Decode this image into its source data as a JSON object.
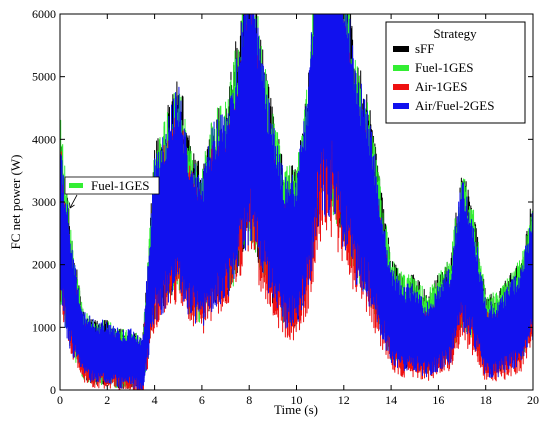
{
  "chart_data": {
    "type": "line",
    "xlabel": "Time (s)",
    "ylabel": "FC net power (W)",
    "xlim": [
      0,
      20
    ],
    "ylim": [
      0,
      6000
    ],
    "xticks": [
      0,
      2,
      4,
      6,
      8,
      10,
      12,
      14,
      16,
      18,
      20
    ],
    "yticks": [
      0,
      1000,
      2000,
      3000,
      4000,
      5000,
      6000
    ],
    "grid": false,
    "legend": {
      "title": "Strategy",
      "placement": "top-right"
    },
    "annotation": {
      "text": "Fuel-1GES",
      "x": 0.4,
      "y": 2700,
      "series": "Fuel-1GES"
    },
    "series": [
      {
        "name": "sFF",
        "color": "#000000",
        "x": [
          0,
          0.5,
          1,
          1.5,
          2,
          2.5,
          3,
          3.5,
          4,
          4.5,
          5,
          5.5,
          6,
          6.5,
          7,
          7.5,
          8,
          8.5,
          9,
          9.5,
          10,
          10.5,
          11,
          11.5,
          12,
          12.5,
          13,
          13.5,
          14,
          14.5,
          15,
          15.5,
          16,
          16.5,
          17,
          17.5,
          18,
          18.5,
          19,
          19.5,
          20
        ],
        "y": [
          2800,
          1500,
          700,
          600,
          600,
          500,
          500,
          400,
          2500,
          2900,
          3400,
          2600,
          2300,
          2900,
          3000,
          3800,
          4900,
          3700,
          2900,
          2300,
          2300,
          3300,
          5600,
          5700,
          4700,
          3500,
          3200,
          2200,
          1300,
          1100,
          1100,
          900,
          1100,
          1300,
          2300,
          1800,
          900,
          900,
          1100,
          1300,
          2000
        ]
      },
      {
        "name": "Fuel-1GES",
        "color": "#33ee33",
        "x": [
          0,
          0.5,
          1,
          1.5,
          2,
          2.5,
          3,
          3.5,
          4,
          4.5,
          5,
          5.5,
          6,
          6.5,
          7,
          7.5,
          8,
          8.5,
          9,
          9.5,
          10,
          10.5,
          11,
          11.5,
          12,
          12.5,
          13,
          13.5,
          14,
          14.5,
          15,
          15.5,
          16,
          16.5,
          17,
          17.5,
          18,
          18.5,
          19,
          19.5,
          20
        ],
        "y": [
          2900,
          1500,
          700,
          600,
          600,
          500,
          500,
          400,
          2500,
          2900,
          3300,
          2600,
          2300,
          2900,
          3000,
          3700,
          4800,
          3700,
          2900,
          2300,
          2300,
          3300,
          5500,
          5600,
          4600,
          3500,
          3100,
          2200,
          1300,
          1100,
          1100,
          900,
          1100,
          1300,
          2300,
          1800,
          900,
          900,
          1100,
          1300,
          2000
        ]
      },
      {
        "name": "Air-1GES",
        "color": "#ee1111",
        "x": [
          0,
          0.5,
          1,
          1.5,
          2,
          2.5,
          3,
          3.5,
          4,
          4.5,
          5,
          5.5,
          6,
          6.5,
          7,
          7.5,
          8,
          8.5,
          9,
          9.5,
          10,
          10.5,
          11,
          11.5,
          12,
          12.5,
          13,
          13.5,
          14,
          14.5,
          15,
          15.5,
          16,
          16.5,
          17,
          17.5,
          18,
          18.5,
          19,
          19.5,
          20
        ],
        "y": [
          2600,
          1300,
          600,
          500,
          500,
          400,
          400,
          300,
          2200,
          2600,
          3000,
          2300,
          2000,
          2600,
          2700,
          3300,
          4400,
          3300,
          2500,
          1900,
          1800,
          2800,
          4700,
          4800,
          4000,
          3000,
          2700,
          1800,
          1000,
          800,
          800,
          700,
          800,
          1000,
          1900,
          1400,
          700,
          700,
          800,
          1000,
          1600
        ]
      },
      {
        "name": "Air/Fuel-2GES",
        "color": "#1111ee",
        "x": [
          0,
          0.5,
          1,
          1.5,
          2,
          2.5,
          3,
          3.5,
          4,
          4.5,
          5,
          5.5,
          6,
          6.5,
          7,
          7.5,
          8,
          8.5,
          9,
          9.5,
          10,
          10.5,
          11,
          11.5,
          12,
          12.5,
          13,
          13.5,
          14,
          14.5,
          15,
          15.5,
          16,
          16.5,
          17,
          17.5,
          18,
          18.5,
          19,
          19.5,
          20
        ],
        "y": [
          2700,
          1400,
          700,
          600,
          600,
          500,
          500,
          400,
          2400,
          2800,
          3200,
          2500,
          2200,
          2800,
          2900,
          3600,
          4700,
          3600,
          2800,
          2200,
          2200,
          3200,
          5400,
          5500,
          4500,
          3400,
          3000,
          2100,
          1200,
          1000,
          1000,
          800,
          1000,
          1200,
          2200,
          1700,
          800,
          800,
          1000,
          1200,
          1900
        ]
      }
    ]
  }
}
